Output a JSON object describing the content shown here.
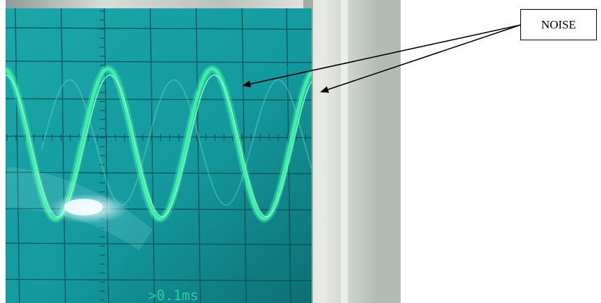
{
  "figure": {
    "photo_subject": "oscilloscope-screen-sine-wave",
    "screen_readout": ">0.1ms",
    "annotation_label": "NOISE",
    "colors": {
      "screen": "#1aa3a5",
      "screen_dark": "#0c6f73",
      "trace": "#3cf0a5",
      "grid": "#0b4b50",
      "bezel": "#c9cfc7",
      "background": "#ffffff"
    }
  }
}
